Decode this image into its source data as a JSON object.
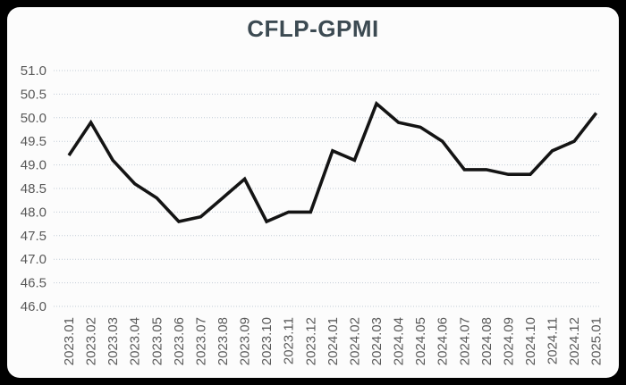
{
  "colors": {
    "page_background": "#000000",
    "card_background": "#fcfcfc",
    "line": "#141414",
    "grid": "#c2ccd6",
    "axis_label": "#595959",
    "title": "#3c4a52"
  },
  "chart_data": {
    "type": "line",
    "title": "CFLP-GPMI",
    "categories": [
      "2023.01",
      "2023.02",
      "2023.03",
      "2023.04",
      "2023.05",
      "2023.06",
      "2023.07",
      "2023.08",
      "2023.09",
      "2023.10",
      "2023.11",
      "2023.12",
      "2024.01",
      "2024.02",
      "2024.03",
      "2024.04",
      "2024.05",
      "2024.06",
      "2024.07",
      "2024.08",
      "2024.09",
      "2024.10",
      "2024.11",
      "2024.12",
      "2025.01"
    ],
    "values": [
      49.2,
      49.9,
      49.1,
      48.6,
      48.3,
      47.8,
      47.9,
      48.3,
      48.7,
      47.8,
      48.0,
      48.0,
      49.3,
      49.1,
      50.3,
      49.9,
      49.8,
      49.5,
      48.9,
      48.9,
      48.8,
      48.8,
      49.3,
      49.5,
      50.1
    ],
    "xlabel": "",
    "ylabel": "",
    "ylim": [
      46.0,
      51.0
    ],
    "ytick_step": 0.5,
    "ytick_labels": [
      "51.0",
      "50.5",
      "50.0",
      "49.5",
      "49.0",
      "48.5",
      "48.0",
      "47.5",
      "47.0",
      "46.5",
      "46.0"
    ],
    "grid": true,
    "grid_style": "dotted-horizontal",
    "legend": false
  }
}
